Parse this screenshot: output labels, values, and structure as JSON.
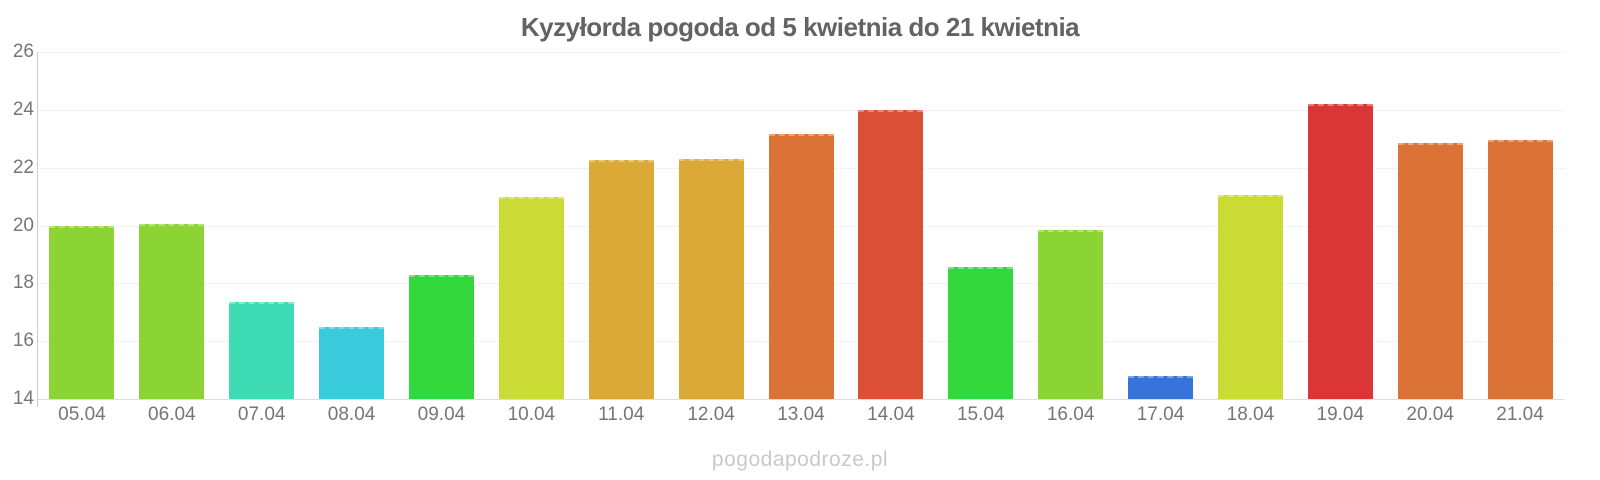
{
  "watermark": "pogodapodroze.pl",
  "palette": {
    "title_color": "#636363",
    "axis_label_color": "#767676",
    "gridline_color": "#e8e8e8",
    "axis_line_color": "#cccccc",
    "watermark_color": "#c9c9c9"
  },
  "chart_data": {
    "type": "bar",
    "title": "Kyzyłorda pogoda od 5 kwietnia do 21 kwietnia",
    "xlabel": "",
    "ylabel": "",
    "ylim": [
      14,
      26
    ],
    "yticks": [
      26,
      24,
      22,
      20,
      18,
      16,
      14
    ],
    "grid": true,
    "legend": false,
    "categories": [
      "05.04",
      "06.04",
      "07.04",
      "08.04",
      "09.04",
      "10.04",
      "11.04",
      "12.04",
      "13.04",
      "14.04",
      "15.04",
      "16.04",
      "17.04",
      "18.04",
      "19.04",
      "20.04",
      "21.04"
    ],
    "values": [
      20.0,
      20.05,
      17.35,
      16.5,
      18.3,
      21.0,
      22.25,
      22.3,
      23.15,
      24.0,
      18.55,
      19.85,
      14.8,
      21.05,
      24.2,
      22.85,
      22.95
    ],
    "bar_colors": [
      "#8bd433",
      "#8bd433",
      "#3edbb4",
      "#39cbdb",
      "#33d93c",
      "#cbdb36",
      "#dba936",
      "#dba936",
      "#db7336",
      "#db4f36",
      "#33d93c",
      "#8bd433",
      "#3673db",
      "#cbdb36",
      "#db3636",
      "#db7336",
      "#db7336"
    ]
  }
}
